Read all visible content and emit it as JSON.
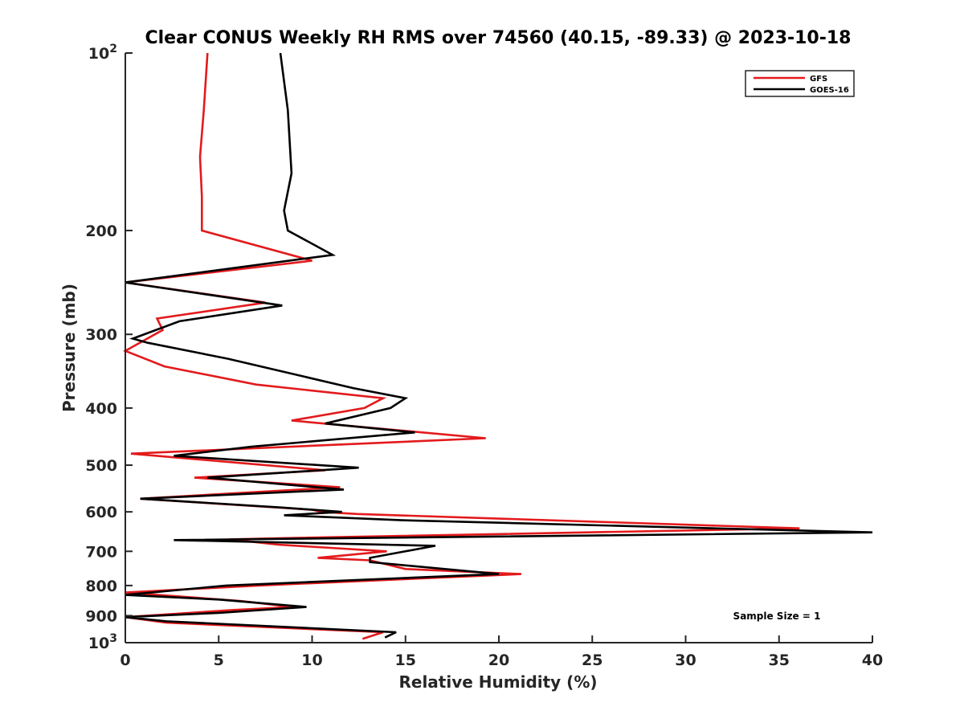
{
  "chart_data": {
    "type": "line",
    "title": "Clear CONUS Weekly RH RMS over 74560 (40.15, -89.33) @ 2023-10-18",
    "xlabel": "Relative Humidity (%)",
    "ylabel": "Pressure (mb)",
    "xlim": [
      0,
      40
    ],
    "ylim": [
      100,
      1000
    ],
    "yscale": "log",
    "y_reversed": true,
    "x_ticks": [
      "0",
      "5",
      "10",
      "15",
      "20",
      "25",
      "30",
      "35",
      "40"
    ],
    "y_ticks": [
      {
        "value": 100,
        "label": "10",
        "sup": "2"
      },
      {
        "value": 200,
        "label": "200",
        "sup": ""
      },
      {
        "value": 300,
        "label": "300",
        "sup": ""
      },
      {
        "value": 400,
        "label": "400",
        "sup": ""
      },
      {
        "value": 500,
        "label": "500",
        "sup": ""
      },
      {
        "value": 600,
        "label": "600",
        "sup": ""
      },
      {
        "value": 700,
        "label": "700",
        "sup": ""
      },
      {
        "value": 800,
        "label": "800",
        "sup": ""
      },
      {
        "value": 900,
        "label": "900",
        "sup": ""
      },
      {
        "value": 1000,
        "label": "10",
        "sup": "3"
      }
    ],
    "grid": false,
    "legend_position": "top-right",
    "annotation": "Sample Size = 1",
    "series": [
      {
        "name": "GFS",
        "color": "#e31a1c",
        "points": [
          [
            4.4,
            100
          ],
          [
            4.2,
            125
          ],
          [
            4.0,
            150
          ],
          [
            4.1,
            175
          ],
          [
            4.1,
            200
          ],
          [
            10.0,
            225
          ],
          [
            0.0,
            245
          ],
          [
            7.5,
            265
          ],
          [
            1.7,
            282
          ],
          [
            2.0,
            295
          ],
          [
            0.0,
            320
          ],
          [
            2.1,
            340
          ],
          [
            7.0,
            365
          ],
          [
            13.8,
            385
          ],
          [
            12.8,
            400
          ],
          [
            8.9,
            420
          ],
          [
            19.3,
            450
          ],
          [
            0.3,
            478
          ],
          [
            10.7,
            510
          ],
          [
            3.7,
            525
          ],
          [
            11.5,
            545
          ],
          [
            0.8,
            570
          ],
          [
            10.0,
            595
          ],
          [
            10.5,
            600
          ],
          [
            12.4,
            605
          ],
          [
            36.1,
            640
          ],
          [
            8.2,
            665
          ],
          [
            5.6,
            668
          ],
          [
            8.2,
            682
          ],
          [
            14.0,
            700
          ],
          [
            10.3,
            718
          ],
          [
            13.1,
            725
          ],
          [
            15.0,
            750
          ],
          [
            21.2,
            765
          ],
          [
            7.1,
            800
          ],
          [
            0.0,
            822
          ],
          [
            6.2,
            850
          ],
          [
            9.0,
            870
          ],
          [
            5.8,
            880
          ],
          [
            0.0,
            905
          ],
          [
            2.2,
            925
          ],
          [
            13.8,
            960
          ],
          [
            12.7,
            985
          ]
        ]
      },
      {
        "name": "GOES-16",
        "color": "#000000",
        "points": [
          [
            8.3,
            100
          ],
          [
            8.7,
            125
          ],
          [
            8.9,
            160
          ],
          [
            8.5,
            185
          ],
          [
            8.7,
            200
          ],
          [
            11.1,
            220
          ],
          [
            0.0,
            245
          ],
          [
            8.4,
            268
          ],
          [
            2.9,
            285
          ],
          [
            0.4,
            305
          ],
          [
            1.2,
            310
          ],
          [
            5.5,
            330
          ],
          [
            12.2,
            370
          ],
          [
            15.0,
            385
          ],
          [
            14.2,
            400
          ],
          [
            10.7,
            425
          ],
          [
            15.5,
            440
          ],
          [
            6.8,
            465
          ],
          [
            2.6,
            482
          ],
          [
            12.5,
            505
          ],
          [
            4.4,
            525
          ],
          [
            11.7,
            550
          ],
          [
            0.8,
            570
          ],
          [
            8.4,
            590
          ],
          [
            11.6,
            600
          ],
          [
            8.5,
            608
          ],
          [
            14.8,
            620
          ],
          [
            40.0,
            650
          ],
          [
            2.6,
            670
          ],
          [
            16.6,
            685
          ],
          [
            13.1,
            718
          ],
          [
            13.1,
            730
          ],
          [
            20.0,
            765
          ],
          [
            5.4,
            800
          ],
          [
            0.0,
            830
          ],
          [
            5.0,
            845
          ],
          [
            9.7,
            870
          ],
          [
            5.0,
            890
          ],
          [
            0.0,
            905
          ],
          [
            2.2,
            920
          ],
          [
            14.5,
            960
          ],
          [
            13.9,
            980
          ]
        ]
      }
    ]
  }
}
